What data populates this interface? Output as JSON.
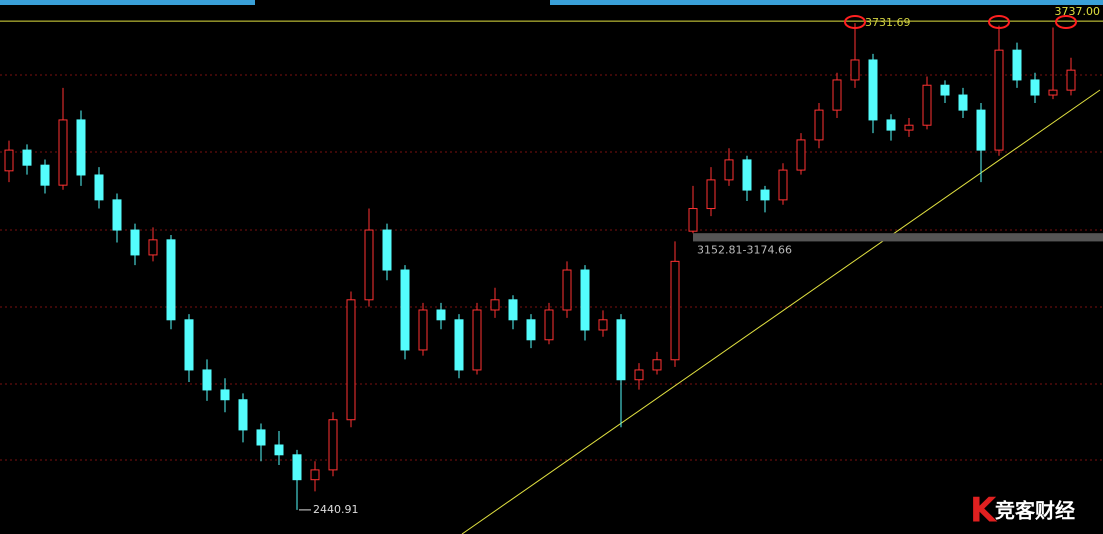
{
  "chart_data": {
    "type": "candlestick",
    "candles": [
      [
        3340,
        3420,
        3310,
        3395
      ],
      [
        3395,
        3410,
        3330,
        3355
      ],
      [
        3355,
        3370,
        3280,
        3302
      ],
      [
        3302,
        3560,
        3290,
        3475
      ],
      [
        3475,
        3500,
        3300,
        3329
      ],
      [
        3329,
        3350,
        3240,
        3263
      ],
      [
        3263,
        3280,
        3150,
        3183
      ],
      [
        3183,
        3200,
        3090,
        3117
      ],
      [
        3117,
        3190,
        3100,
        3157
      ],
      [
        3157,
        3170,
        2920,
        2945
      ],
      [
        2945,
        2960,
        2780,
        2812
      ],
      [
        2812,
        2840,
        2730,
        2759
      ],
      [
        2759,
        2790,
        2700,
        2733
      ],
      [
        2733,
        2750,
        2620,
        2653
      ],
      [
        2653,
        2670,
        2570,
        2613
      ],
      [
        2613,
        2650,
        2560,
        2587
      ],
      [
        2587,
        2600,
        2440.91,
        2521
      ],
      [
        2521,
        2570,
        2490,
        2547
      ],
      [
        2547,
        2700,
        2530,
        2680
      ],
      [
        2680,
        3020,
        2660,
        2998
      ],
      [
        2998,
        3240,
        2980,
        3183
      ],
      [
        3183,
        3200,
        3050,
        3077
      ],
      [
        3077,
        3090,
        2840,
        2865
      ],
      [
        2865,
        2990,
        2850,
        2971
      ],
      [
        2971,
        2990,
        2920,
        2945
      ],
      [
        2945,
        2960,
        2790,
        2812
      ],
      [
        2812,
        2990,
        2800,
        2971
      ],
      [
        2971,
        3030,
        2950,
        2998
      ],
      [
        2998,
        3010,
        2920,
        2945
      ],
      [
        2945,
        2960,
        2870,
        2892
      ],
      [
        2892,
        2990,
        2880,
        2971
      ],
      [
        2971,
        3100,
        2950,
        3077
      ],
      [
        3077,
        3090,
        2890,
        2918
      ],
      [
        2918,
        2970,
        2900,
        2945
      ],
      [
        2945,
        2960,
        2660,
        2786
      ],
      [
        2786,
        2830,
        2760,
        2812
      ],
      [
        2812,
        2860,
        2800,
        2839
      ],
      [
        2839,
        3152.81,
        2820,
        3100
      ],
      [
        3180,
        3300,
        3174.66,
        3240
      ],
      [
        3240,
        3350,
        3220,
        3316
      ],
      [
        3316,
        3400,
        3300,
        3369
      ],
      [
        3369,
        3380,
        3260,
        3289
      ],
      [
        3289,
        3300,
        3230,
        3263
      ],
      [
        3263,
        3360,
        3250,
        3342
      ],
      [
        3342,
        3440,
        3330,
        3422
      ],
      [
        3422,
        3520,
        3400,
        3501
      ],
      [
        3501,
        3600,
        3480,
        3581
      ],
      [
        3581,
        3731.69,
        3560,
        3634
      ],
      [
        3634,
        3650,
        3440,
        3475
      ],
      [
        3475,
        3490,
        3420,
        3448
      ],
      [
        3448,
        3480,
        3430,
        3461
      ],
      [
        3461,
        3590,
        3450,
        3567
      ],
      [
        3567,
        3580,
        3520,
        3541
      ],
      [
        3541,
        3560,
        3480,
        3501
      ],
      [
        3501,
        3520,
        3310,
        3395
      ],
      [
        3395,
        3725,
        3380,
        3660
      ],
      [
        3660,
        3680,
        3560,
        3581
      ],
      [
        3581,
        3600,
        3520,
        3541
      ],
      [
        3541,
        3720,
        3530,
        3554
      ],
      [
        3554,
        3640,
        3540,
        3607
      ]
    ],
    "up_color": "#ff3232",
    "down_color": "#54fcfc",
    "ylim": [
      2377,
      3793
    ],
    "high_label": {
      "value": 3731.69,
      "label": "3731.69"
    },
    "low_label": {
      "value": 2440.91,
      "label": "2440.91"
    },
    "reference_line": {
      "value": 3737,
      "label": "3737.00"
    },
    "gap": {
      "low": 3152.81,
      "high": 3174.66,
      "label": "3152.81-3174.66"
    },
    "logo": "竞客财经"
  }
}
